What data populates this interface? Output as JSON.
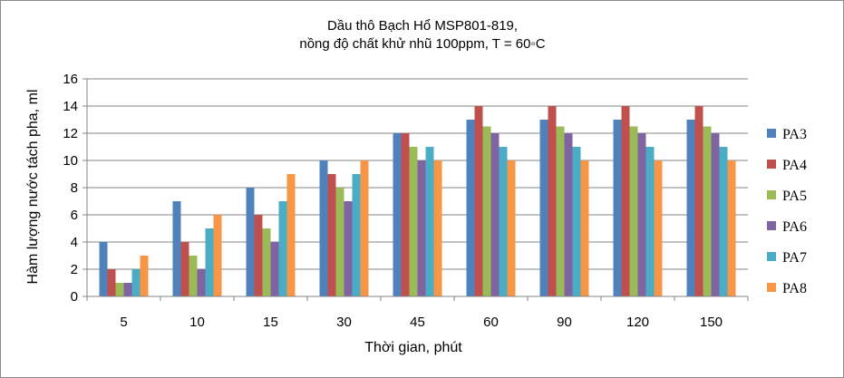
{
  "chart_data": {
    "type": "bar",
    "title": [
      "Dầu thô Bạch Hổ MSP801-819,",
      "nồng độ chất khử nhũ 100ppm, T = 60◦C"
    ],
    "xlabel": "Thời gian, phút",
    "ylabel": "Hàm lượng nước tách pha, ml",
    "ylim": [
      0,
      16
    ],
    "yticks": [
      0,
      2,
      4,
      6,
      8,
      10,
      12,
      14,
      16
    ],
    "grid": true,
    "legend_position": "right",
    "categories": [
      "5",
      "10",
      "15",
      "30",
      "45",
      "60",
      "90",
      "120",
      "150"
    ],
    "series": [
      {
        "name": "PA3",
        "color": "#4F81BD",
        "values": [
          4,
          7,
          8,
          10,
          12,
          13,
          13,
          13,
          13
        ]
      },
      {
        "name": "PA4",
        "color": "#C0504D",
        "values": [
          2,
          4,
          6,
          9,
          12,
          14,
          14,
          14,
          14
        ]
      },
      {
        "name": "PA5",
        "color": "#9BBB59",
        "values": [
          1,
          3,
          5,
          8,
          11,
          12.5,
          12.5,
          12.5,
          12.5
        ]
      },
      {
        "name": "PA6",
        "color": "#8064A2",
        "values": [
          1,
          2,
          4,
          7,
          10,
          12,
          12,
          12,
          12
        ]
      },
      {
        "name": "PA7",
        "color": "#4BACC6",
        "values": [
          2,
          5,
          7,
          9,
          11,
          11,
          11,
          11,
          11
        ]
      },
      {
        "name": "PA8",
        "color": "#F79646",
        "values": [
          3,
          6,
          9,
          10,
          10,
          10,
          10,
          10,
          10
        ]
      }
    ]
  }
}
